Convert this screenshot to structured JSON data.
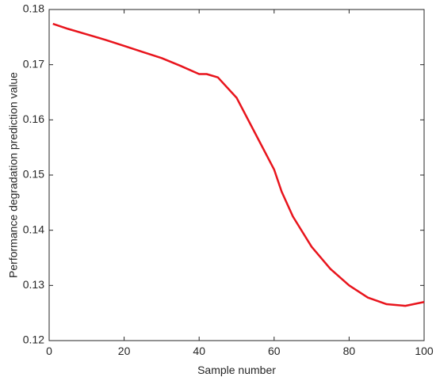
{
  "chart_data": {
    "type": "line",
    "xlabel": "Sample number",
    "ylabel": "Performance degradation prediction value",
    "x": [
      1,
      5,
      10,
      15,
      20,
      25,
      30,
      35,
      40,
      42,
      45,
      50,
      55,
      60,
      62,
      65,
      70,
      75,
      80,
      85,
      90,
      95,
      100
    ],
    "values": [
      0.1774,
      0.1765,
      0.1755,
      0.1745,
      0.1734,
      0.1723,
      0.1712,
      0.1698,
      0.1683,
      0.1683,
      0.1677,
      0.164,
      0.1575,
      0.151,
      0.147,
      0.1425,
      0.137,
      0.133,
      0.13,
      0.1278,
      0.1266,
      0.1263,
      0.127
    ],
    "color": "#e8141c",
    "xlim": [
      0,
      100
    ],
    "xticks": [
      0,
      20,
      40,
      60,
      80,
      100
    ],
    "ylim": [
      0.12,
      0.18
    ],
    "yticks": [
      0.12,
      0.13,
      0.14,
      0.15,
      0.16,
      0.17,
      0.18
    ]
  }
}
